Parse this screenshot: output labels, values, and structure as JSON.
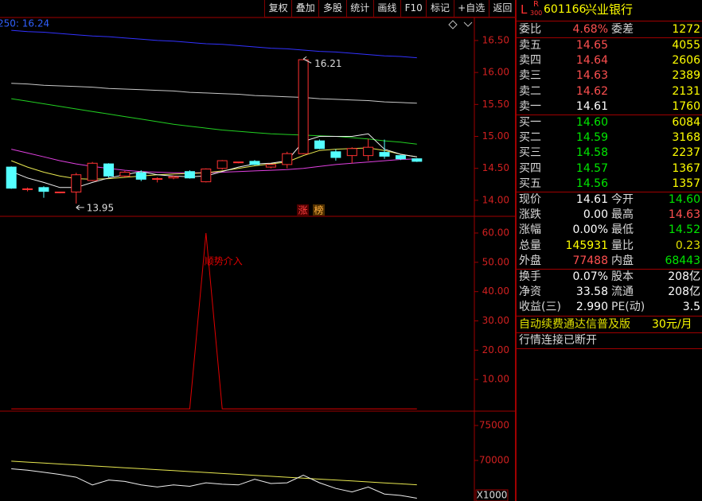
{
  "toolbar": [
    "复权",
    "叠加",
    "多股",
    "统计",
    "画线",
    "F10",
    "标记",
    "+自选",
    "返回"
  ],
  "chart_data": [
    {
      "type": "candlestick",
      "label": "250: 16.24",
      "ylim": [
        13.75,
        16.86
      ],
      "yticks": [
        {
          "value": 16.5,
          "label": "16.50"
        },
        {
          "value": 16,
          "label": "16.00"
        },
        {
          "value": 15.5,
          "label": "15.50"
        },
        {
          "value": 15,
          "label": "15.00"
        },
        {
          "value": 14.5,
          "label": "14.50"
        },
        {
          "value": 14,
          "label": "14.00"
        }
      ],
      "up_color": "#ff3232",
      "down_color": "#54ffff",
      "candles": {
        "open": [
          14.52,
          14.17,
          14.2,
          14.12,
          14.13,
          14.31,
          14.57,
          14.38,
          14.43,
          14.33,
          14.35,
          14.45,
          14.29,
          14.5,
          14.59,
          14.61,
          14.52,
          14.56,
          14.73,
          14.93,
          14.76,
          14.7,
          14.7,
          14.75,
          14.7,
          14.65
        ],
        "high": [
          14.53,
          14.2,
          14.22,
          14.13,
          14.43,
          14.6,
          14.58,
          14.46,
          14.47,
          14.36,
          14.39,
          14.47,
          14.5,
          14.63,
          14.6,
          14.63,
          14.57,
          14.76,
          16.21,
          14.95,
          14.8,
          14.83,
          14.96,
          14.95,
          14.71,
          14.66
        ],
        "low": [
          14.18,
          14.14,
          14.04,
          14.11,
          13.95,
          14.3,
          14.36,
          14.36,
          14.3,
          14.28,
          14.33,
          14.34,
          14.28,
          14.48,
          14.58,
          14.55,
          14.5,
          14.5,
          14.72,
          14.8,
          14.62,
          14.58,
          14.62,
          14.65,
          14.63,
          14.6
        ],
        "close": [
          14.19,
          14.18,
          14.14,
          14.13,
          14.4,
          14.58,
          14.38,
          14.44,
          14.33,
          14.34,
          14.37,
          14.35,
          14.49,
          14.62,
          14.6,
          14.56,
          14.56,
          14.73,
          16.2,
          14.81,
          14.67,
          14.81,
          14.83,
          14.69,
          14.65,
          14.61
        ]
      },
      "series": [
        {
          "color": "#3232ff",
          "values": [
            16.66,
            16.64,
            16.63,
            16.61,
            16.59,
            16.57,
            16.56,
            16.54,
            16.52,
            16.5,
            16.49,
            16.47,
            16.45,
            16.44,
            16.42,
            16.4,
            16.38,
            16.37,
            16.35,
            16.33,
            16.32,
            16.3,
            16.28,
            16.26,
            16.25,
            16.23
          ]
        },
        {
          "color": "#c8c8c8",
          "values": [
            15.83,
            15.82,
            15.8,
            15.79,
            15.78,
            15.77,
            15.75,
            15.74,
            15.73,
            15.72,
            15.71,
            15.69,
            15.68,
            15.67,
            15.66,
            15.64,
            15.63,
            15.62,
            15.61,
            15.59,
            15.58,
            15.57,
            15.56,
            15.54,
            15.53,
            15.52
          ]
        },
        {
          "color": "#22d022",
          "values": [
            15.59,
            15.55,
            15.51,
            15.47,
            15.43,
            15.39,
            15.35,
            15.31,
            15.27,
            15.23,
            15.19,
            15.16,
            15.13,
            15.1,
            15.08,
            15.06,
            15.04,
            15.03,
            15.02,
            15.01,
            15.0,
            14.98,
            14.96,
            14.93,
            14.91,
            14.88
          ]
        },
        {
          "color": "#e040e0",
          "values": [
            14.8,
            14.74,
            14.68,
            14.62,
            14.57,
            14.53,
            14.5,
            14.47,
            14.45,
            14.44,
            14.43,
            14.43,
            14.43,
            14.44,
            14.45,
            14.46,
            14.47,
            14.48,
            14.5,
            14.53,
            14.56,
            14.58,
            14.6,
            14.62,
            14.64,
            14.65
          ]
        },
        {
          "color": "#e8e850",
          "values": [
            14.62,
            14.52,
            14.44,
            14.38,
            14.34,
            14.33,
            14.34,
            14.36,
            14.38,
            14.4,
            14.41,
            14.42,
            14.43,
            14.46,
            14.5,
            14.54,
            14.57,
            14.6,
            14.7,
            14.78,
            14.8,
            14.81,
            14.82,
            14.78,
            14.72,
            14.68
          ]
        },
        {
          "color": "#f0f0f0",
          "values": [
            14.45,
            14.35,
            14.28,
            14.2,
            14.2,
            14.28,
            14.35,
            14.4,
            14.45,
            14.4,
            14.38,
            14.37,
            14.38,
            14.45,
            14.52,
            14.57,
            14.58,
            14.62,
            14.92,
            15.0,
            15.0,
            15.0,
            15.04,
            14.8,
            14.72,
            14.68
          ]
        }
      ],
      "max_label": {
        "value": 16.21,
        "label": "16.21"
      },
      "min_label": {
        "value": 13.95,
        "label": "13.95"
      },
      "badges": [
        "涨",
        "榜"
      ]
    },
    {
      "type": "line",
      "ylim": [
        -0.8,
        65.7
      ],
      "yticks": [
        {
          "value": 60,
          "label": "60.00"
        },
        {
          "value": 50,
          "label": "50.00"
        },
        {
          "value": 40,
          "label": "40.00"
        },
        {
          "value": 30,
          "label": "30.00"
        },
        {
          "value": 20,
          "label": "20.00"
        },
        {
          "value": 10,
          "label": "10.00"
        }
      ],
      "series": [
        {
          "color": "#e00000",
          "values": [
            0,
            0,
            0,
            0,
            0,
            0,
            0,
            0,
            0,
            0,
            0,
            0,
            60,
            0,
            0,
            0,
            0,
            0,
            0,
            0,
            0,
            0,
            0,
            0,
            0,
            0
          ]
        }
      ],
      "annotation": "顺势介入"
    },
    {
      "type": "line",
      "ylim": [
        64200,
        77050
      ],
      "yticks": [
        75000,
        70000
      ],
      "unit": "X1000",
      "series": [
        {
          "color": "#e8e850",
          "values": [
            69900,
            69760,
            69630,
            69490,
            69360,
            69220,
            69090,
            68950,
            68820,
            68680,
            68550,
            68410,
            68280,
            68140,
            68010,
            67870,
            67740,
            67600,
            67470,
            67330,
            67200,
            67060,
            66930,
            66790,
            66660,
            66520
          ]
        },
        {
          "color": "#f0f0f0",
          "values": [
            68800,
            68600,
            68300,
            68000,
            67600,
            66500,
            67200,
            67000,
            66500,
            66200,
            66500,
            66300,
            66800,
            66600,
            66500,
            67300,
            66700,
            66800,
            67900,
            66800,
            66000,
            65500,
            66200,
            65200,
            65000,
            64600
          ]
        }
      ]
    }
  ],
  "quote": {
    "market": "L",
    "board": "R",
    "board_sub": "300",
    "code": "601166",
    "name": "兴业银行",
    "ratio": {
      "label": "委比",
      "value": "4.68%",
      "color": "#ff5050",
      "label2": "委差",
      "value2": "1272",
      "color2": "#ffff00"
    },
    "asks": [
      {
        "label": "卖五",
        "price": "14.65",
        "color": "#ff5050",
        "volume": "4055"
      },
      {
        "label": "卖四",
        "price": "14.64",
        "color": "#ff5050",
        "volume": "2606"
      },
      {
        "label": "卖三",
        "price": "14.63",
        "color": "#ff5050",
        "volume": "2389"
      },
      {
        "label": "卖二",
        "price": "14.62",
        "color": "#ff5050",
        "volume": "2131"
      },
      {
        "label": "卖一",
        "price": "14.61",
        "color": "#ffffff",
        "volume": "1760"
      }
    ],
    "bids": [
      {
        "label": "买一",
        "price": "14.60",
        "color": "#00e600",
        "volume": "6084"
      },
      {
        "label": "买二",
        "price": "14.59",
        "color": "#00e600",
        "volume": "3168"
      },
      {
        "label": "买三",
        "price": "14.58",
        "color": "#00e600",
        "volume": "2237"
      },
      {
        "label": "买四",
        "price": "14.57",
        "color": "#00e600",
        "volume": "1367"
      },
      {
        "label": "买五",
        "price": "14.56",
        "color": "#00e600",
        "volume": "1357"
      }
    ],
    "stats": [
      {
        "label": "现价",
        "value": "14.61",
        "color": "#ffffff",
        "label2": "今开",
        "value2": "14.60",
        "color2": "#00e600"
      },
      {
        "label": "涨跌",
        "value": "0.00",
        "color": "#ffffff",
        "label2": "最高",
        "value2": "14.63",
        "color2": "#ff5050"
      },
      {
        "label": "涨幅",
        "value": "0.00%",
        "color": "#ffffff",
        "label2": "最低",
        "value2": "14.52",
        "color2": "#00e600"
      },
      {
        "label": "总量",
        "value": "145931",
        "color": "#ffff00",
        "label2": "量比",
        "value2": "0.23",
        "color2": "#e0e000"
      },
      {
        "label": "外盘",
        "value": "77488",
        "color": "#ff5050",
        "label2": "内盘",
        "value2": "68443",
        "color2": "#00e600"
      }
    ],
    "finance": [
      {
        "label": "换手",
        "value": "0.07%",
        "color": "#ffffff",
        "label2": "股本",
        "value2": "208亿",
        "color2": "#ffffff"
      },
      {
        "label": "净资",
        "value": "33.58",
        "color": "#ffffff",
        "label2": "流通",
        "value2": "208亿",
        "color2": "#ffffff"
      },
      {
        "label": "收益(三)",
        "value": "2.990",
        "color": "#ffffff",
        "label2": "PE(动)",
        "value2": "3.5",
        "color2": "#ffffff"
      }
    ],
    "promo": "自动续费通达信普及版",
    "price_tag": "30元/月",
    "status": "行情连接已断开"
  }
}
